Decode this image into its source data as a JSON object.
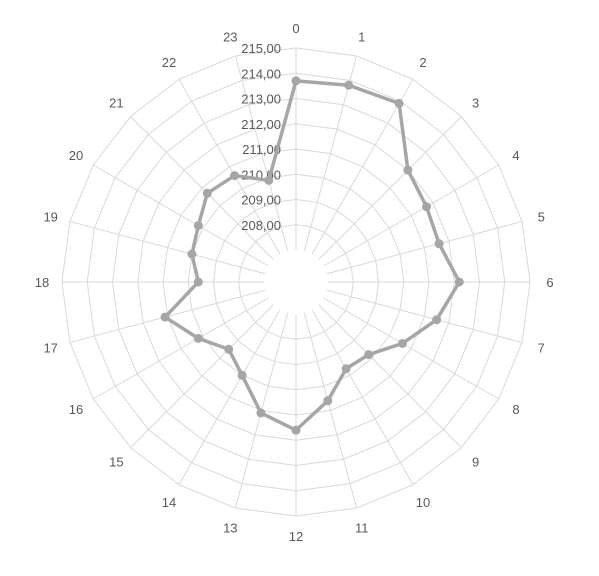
{
  "chart_data": {
    "type": "radar",
    "title": "",
    "categories": [
      "0",
      "1",
      "2",
      "3",
      "4",
      "5",
      "6",
      "7",
      "8",
      "9",
      "10",
      "11",
      "12",
      "13",
      "14",
      "15",
      "16",
      "17",
      "18",
      "19",
      "20",
      "21",
      "22",
      "23"
    ],
    "rlim": [
      207.0,
      215.0
    ],
    "tick_values": [
      208,
      209,
      210,
      211,
      212,
      213,
      214,
      215
    ],
    "tick_labels": [
      "208,00",
      "209,00",
      "210,00",
      "211,00",
      "212,00",
      "213,00",
      "214,00",
      "215,00"
    ],
    "grid": true,
    "legend": "none",
    "series": [
      {
        "color": "#a6a6a6",
        "values": [
          213.7,
          213.8,
          213.9,
          212.0,
          211.7,
          211.6,
          212.2,
          211.5,
          210.6,
          209.8,
          209.7,
          210.6,
          211.6,
          211.1,
          210.0,
          209.5,
          210.2,
          211.1,
          209.6,
          210.0,
          210.2,
          210.7,
          210.6,
          209.9
        ]
      }
    ]
  }
}
